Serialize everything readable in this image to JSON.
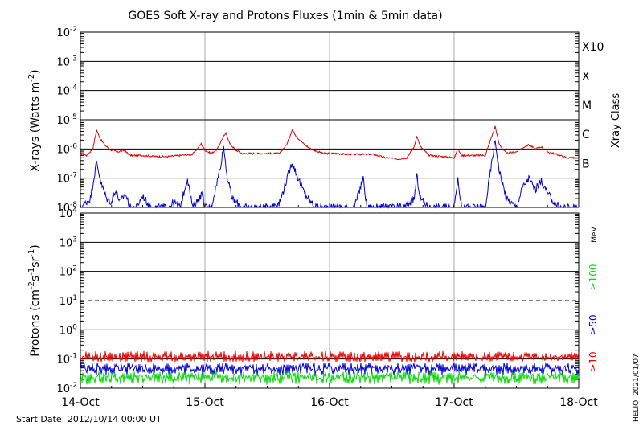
{
  "title": "GOES Soft X-ray and Protons Fluxes   (1min & 5min data)",
  "footer": {
    "start_date": "Start Date: 2012/10/14 00:00 UT",
    "credit": "HELIO: 2021/01/07"
  },
  "colors": {
    "xray_long": "#dd0000",
    "xray_short": "#0000cc",
    "proton_10": "#ee0000",
    "proton_50": "#0000dd",
    "proton_100": "#00dd00",
    "grid": "#000000",
    "day_lines": "#aaaaaa"
  },
  "chart_data": [
    {
      "type": "line",
      "panel": "xrays",
      "ylabel": "X-rays (Watts m",
      "ylabel_sup": "-2",
      "ylabel_close": ")",
      "yscale": "log",
      "ylim": [
        1e-08,
        0.01
      ],
      "y_ticks": [
        {
          "base": "10",
          "exp": "-8"
        },
        {
          "base": "10",
          "exp": "-7"
        },
        {
          "base": "10",
          "exp": "-6"
        },
        {
          "base": "10",
          "exp": "-5"
        },
        {
          "base": "10",
          "exp": "-4"
        },
        {
          "base": "10",
          "exp": "-3"
        },
        {
          "base": "10",
          "exp": "-2"
        }
      ],
      "right_axis_label": "Xray Class",
      "class_labels": [
        {
          "label": "B",
          "level": 1e-07
        },
        {
          "label": "C",
          "level": 1e-06
        },
        {
          "label": "M",
          "level": 1e-05
        },
        {
          "label": "X",
          "level": 0.0001
        },
        {
          "label": "X10",
          "level": 0.001
        }
      ],
      "x_unit": "days since 2012-10-14 00:00 UT",
      "xlim": [
        0,
        4
      ],
      "grid": "horizontal lines at each decade; vertical lines at each day",
      "series": [
        {
          "color": "#dd0000",
          "points": [
            [
              0,
              7e-07
            ],
            [
              0.05,
              6e-07
            ],
            [
              0.1,
              1e-06
            ],
            [
              0.13,
              4.5e-06
            ],
            [
              0.16,
              2.2e-06
            ],
            [
              0.2,
              1.3e-06
            ],
            [
              0.25,
              9e-07
            ],
            [
              0.3,
              8e-07
            ],
            [
              0.35,
              9e-07
            ],
            [
              0.4,
              6e-07
            ],
            [
              0.5,
              6e-07
            ],
            [
              0.6,
              5.5e-07
            ],
            [
              0.7,
              5.5e-07
            ],
            [
              0.8,
              6e-07
            ],
            [
              0.9,
              6.5e-07
            ],
            [
              0.97,
              1.5e-06
            ],
            [
              1.0,
              9e-07
            ],
            [
              1.05,
              7e-07
            ],
            [
              1.1,
              1e-06
            ],
            [
              1.14,
              2.3e-06
            ],
            [
              1.17,
              3.5e-06
            ],
            [
              1.2,
              1.5e-06
            ],
            [
              1.25,
              9e-07
            ],
            [
              1.3,
              7e-07
            ],
            [
              1.4,
              7e-07
            ],
            [
              1.5,
              7e-07
            ],
            [
              1.6,
              7e-07
            ],
            [
              1.66,
              1.5e-06
            ],
            [
              1.7,
              4.5e-06
            ],
            [
              1.74,
              2.5e-06
            ],
            [
              1.8,
              1.4e-06
            ],
            [
              1.85,
              1e-06
            ],
            [
              1.95,
              7e-07
            ],
            [
              2.05,
              7e-07
            ],
            [
              2.15,
              6.5e-07
            ],
            [
              2.25,
              6.5e-07
            ],
            [
              2.35,
              6.5e-07
            ],
            [
              2.45,
              5e-07
            ],
            [
              2.55,
              4.5e-07
            ],
            [
              2.62,
              5e-07
            ],
            [
              2.68,
              1.2e-06
            ],
            [
              2.7,
              2.8e-06
            ],
            [
              2.73,
              1.2e-06
            ],
            [
              2.8,
              6e-07
            ],
            [
              2.9,
              5.5e-07
            ],
            [
              3.0,
              5e-07
            ],
            [
              3.03,
              1e-06
            ],
            [
              3.06,
              6e-07
            ],
            [
              3.15,
              6e-07
            ],
            [
              3.25,
              6e-07
            ],
            [
              3.3,
              2.5e-06
            ],
            [
              3.33,
              6e-06
            ],
            [
              3.36,
              1.5e-06
            ],
            [
              3.42,
              7e-07
            ],
            [
              3.5,
              8e-07
            ],
            [
              3.55,
              1.1e-06
            ],
            [
              3.6,
              1.4e-06
            ],
            [
              3.65,
              1e-06
            ],
            [
              3.7,
              1.2e-06
            ],
            [
              3.75,
              8e-07
            ],
            [
              3.8,
              7e-07
            ],
            [
              3.85,
              6e-07
            ],
            [
              3.9,
              5e-07
            ],
            [
              3.95,
              5e-07
            ],
            [
              4.0,
              4.5e-07
            ]
          ]
        },
        {
          "color": "#0000cc",
          "points": [
            [
              0,
              1e-08
            ],
            [
              0.08,
              2e-08
            ],
            [
              0.13,
              3.5e-07
            ],
            [
              0.17,
              6e-08
            ],
            [
              0.21,
              2e-08
            ],
            [
              0.25,
              1.5e-08
            ],
            [
              0.28,
              4e-08
            ],
            [
              0.32,
              1.5e-08
            ],
            [
              0.36,
              3e-08
            ],
            [
              0.4,
              1e-08
            ],
            [
              0.45,
              1e-08
            ],
            [
              0.5,
              2.5e-08
            ],
            [
              0.55,
              1.2e-08
            ],
            [
              0.6,
              1e-08
            ],
            [
              0.65,
              1e-08
            ],
            [
              0.7,
              1e-08
            ],
            [
              0.75,
              1.5e-08
            ],
            [
              0.8,
              1e-08
            ],
            [
              0.86,
              1e-07
            ],
            [
              0.9,
              1e-08
            ],
            [
              0.95,
              2e-08
            ],
            [
              0.98,
              3e-08
            ],
            [
              1.0,
              1e-08
            ],
            [
              1.05,
              1e-08
            ],
            [
              1.12,
              2e-07
            ],
            [
              1.15,
              1.2e-06
            ],
            [
              1.18,
              1e-07
            ],
            [
              1.22,
              2e-08
            ],
            [
              1.3,
              1e-08
            ],
            [
              1.4,
              1e-08
            ],
            [
              1.5,
              1e-08
            ],
            [
              1.6,
              1.5e-08
            ],
            [
              1.66,
              1e-07
            ],
            [
              1.7,
              3.5e-07
            ],
            [
              1.74,
              1.2e-07
            ],
            [
              1.8,
              3e-08
            ],
            [
              1.85,
              1.5e-08
            ],
            [
              1.9,
              1e-08
            ],
            [
              2.0,
              1e-08
            ],
            [
              2.1,
              1e-08
            ],
            [
              2.2,
              1e-08
            ],
            [
              2.27,
              1e-07
            ],
            [
              2.3,
              1e-08
            ],
            [
              2.4,
              1e-08
            ],
            [
              2.5,
              1e-08
            ],
            [
              2.6,
              1e-08
            ],
            [
              2.68,
              2e-08
            ],
            [
              2.7,
              1.2e-07
            ],
            [
              2.73,
              2e-08
            ],
            [
              2.8,
              1e-08
            ],
            [
              2.9,
              1e-08
            ],
            [
              3.0,
              1e-08
            ],
            [
              3.03,
              1e-07
            ],
            [
              3.06,
              1e-08
            ],
            [
              3.15,
              1e-08
            ],
            [
              3.25,
              1e-08
            ],
            [
              3.3,
              3e-07
            ],
            [
              3.33,
              2e-06
            ],
            [
              3.36,
              2e-07
            ],
            [
              3.42,
              2e-08
            ],
            [
              3.5,
              1e-08
            ],
            [
              3.55,
              5e-08
            ],
            [
              3.6,
              1e-07
            ],
            [
              3.65,
              4e-08
            ],
            [
              3.7,
              8e-08
            ],
            [
              3.75,
              3e-08
            ],
            [
              3.8,
              1.5e-08
            ],
            [
              3.85,
              1e-08
            ],
            [
              3.9,
              1e-08
            ],
            [
              3.95,
              1e-08
            ],
            [
              4.0,
              1e-08
            ]
          ]
        }
      ]
    },
    {
      "type": "line",
      "panel": "protons",
      "ylabel": "Protons (cm",
      "ylabel_parts": [
        "Protons (cm",
        "-2",
        "s",
        "-1",
        "sr",
        "-1",
        ")"
      ],
      "yscale": "log",
      "ylim": [
        0.01,
        10000
      ],
      "y_ticks": [
        {
          "base": "10",
          "exp": "-2"
        },
        {
          "base": "10",
          "exp": "-1"
        },
        {
          "base": "10",
          "exp": "0"
        },
        {
          "base": "10",
          "exp": "1"
        },
        {
          "base": "10",
          "exp": "2"
        },
        {
          "base": "10",
          "exp": "3"
        },
        {
          "base": "10",
          "exp": "4"
        }
      ],
      "threshold_line": 10,
      "unit_label": "MeV",
      "x_unit": "days since 2012-10-14 00:00 UT",
      "x_tick_labels": [
        "14-Oct",
        "15-Oct",
        "16-Oct",
        "17-Oct",
        "18-Oct"
      ],
      "xlim": [
        0,
        4
      ],
      "series": [
        {
          "name": "≥10",
          "color": "#ee0000",
          "level": 0.1,
          "min": 0.075,
          "max": 0.2
        },
        {
          "name": "≥50",
          "color": "#0000dd",
          "level": 0.04,
          "min": 0.025,
          "max": 0.08
        },
        {
          "name": "≥100",
          "color": "#00dd00",
          "level": 0.02,
          "min": 0.012,
          "max": 0.04
        }
      ]
    }
  ]
}
